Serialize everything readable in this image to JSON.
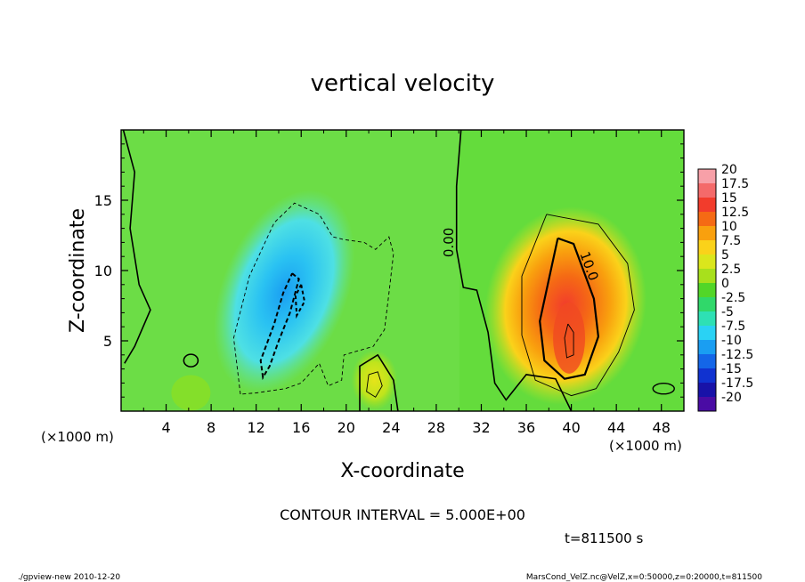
{
  "chart_data": {
    "type": "heatmap",
    "title": "vertical velocity",
    "xlabel": "X-coordinate",
    "ylabel": "Z-coordinate",
    "x_unit_left": "(×1000 m)",
    "x_unit_right": "(×1000 m)",
    "xlim": [
      0,
      50
    ],
    "ylim": [
      0,
      20
    ],
    "x_ticks": [
      4,
      8,
      12,
      16,
      20,
      24,
      28,
      32,
      36,
      40,
      44,
      48
    ],
    "y_ticks": [
      5,
      10,
      15
    ],
    "contour_interval_text": "CONTOUR INTERVAL = 5.000E+00",
    "contour_labels": [
      {
        "text": "0.00",
        "x": 29.5,
        "y": 12.0
      },
      {
        "text": "10.0",
        "x": 41.2,
        "y": 10.2
      }
    ],
    "colorbar": {
      "labels": [
        "20",
        "17.5",
        "15",
        "12.5",
        "10",
        "7.5",
        "5",
        "2.5",
        "0",
        "-2.5",
        "-5",
        "-7.5",
        "-10",
        "-12.5",
        "-15",
        "-17.5",
        "-20"
      ],
      "colors": [
        "#f7a0a8",
        "#f46a6a",
        "#f23c2c",
        "#f56a14",
        "#f9a00e",
        "#fad21a",
        "#dbe61c",
        "#a8e01c",
        "#52d628",
        "#30d86a",
        "#2ee0b4",
        "#2ad2f4",
        "#1a9ef2",
        "#1466e8",
        "#1032d0",
        "#1812a8",
        "#4a0ca4"
      ]
    },
    "features": [
      {
        "kind": "updraft",
        "x": 39.5,
        "z": 6.5,
        "max_value": 15
      },
      {
        "kind": "downdraft",
        "x": 14.5,
        "z": 8.0,
        "min_value": -10
      },
      {
        "kind": "updraft",
        "x": 22.5,
        "z": 2.0,
        "max_value": 5
      }
    ]
  },
  "time_label": "t=811500 s",
  "footer_left": "./gpview-new  2010-12-20",
  "footer_right": "MarsCond_VelZ.nc@VelZ,x=0:50000,z=0:20000,t=811500"
}
